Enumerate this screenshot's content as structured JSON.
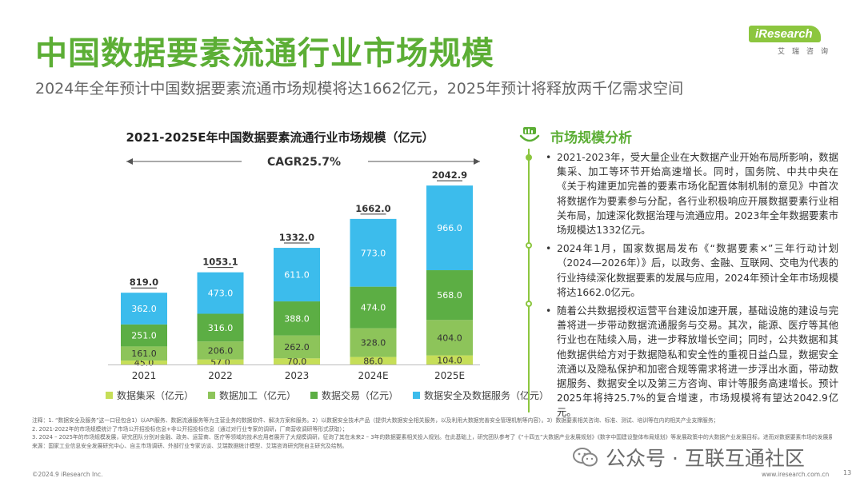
{
  "header": {
    "title": "中国数据要素流通行业市场规模",
    "subtitle": "2024年全年预计中国数据要素流通市场规模将达1662亿元，2025年预计将释放两千亿需求空间"
  },
  "logo": {
    "brand": "iResearch",
    "tagline": "艾瑞咨询",
    "color": "#8cc63f"
  },
  "chart_data": {
    "type": "bar",
    "stacked": true,
    "title": "2021-2025E年中国数据要素流通行业市场规模（亿元）",
    "annotation": "CAGR25.7%",
    "categories": [
      "2021",
      "2022",
      "2023",
      "2024E",
      "2025E"
    ],
    "totals": [
      "819.0",
      "1053.1",
      "1332.0",
      "1662.0",
      "2042.9"
    ],
    "series": [
      {
        "name": "数据集采（亿元）",
        "color": "#c6de58",
        "values": [
          45.0,
          57.0,
          70.0,
          86.0,
          104.0
        ]
      },
      {
        "name": "数据加工（亿元）",
        "color": "#8dc45a",
        "values": [
          161.0,
          206.0,
          262.0,
          328.0,
          404.0
        ]
      },
      {
        "name": "数据交易（亿元）",
        "color": "#5cae44",
        "values": [
          251.0,
          316.0,
          388.0,
          474.0,
          568.0
        ]
      },
      {
        "name": "数据安全及数据服务（亿元）",
        "color": "#3cbcec",
        "values": [
          362.0,
          473.0,
          611.0,
          773.0,
          966.0
        ]
      }
    ],
    "ylim": [
      0,
      2200
    ],
    "legend_position": "bottom"
  },
  "analysis": {
    "heading": "市场规模分析",
    "bullets": [
      "2021-2023年，受大量企业在大数据产业开始布局所影响，数据集采、加工等环节开始高速增长。同时，国务院、中共中央在《关于构建更加完善的要素市场化配置体制机制的意见》中首次将数据作为要素参与分配，各行业积极响应开展数据要素行业相关布局，加速深化数据治理与流通应用。2023年全年数据要素市场规模达1332亿元。",
      "2024年1月，国家数据局发布《“数据要素×”三年行动计划（2024—2026年）》后，以政务、金融、互联网、交电为代表的行业持续深化数据要素的发展与应用，2024年预计全年市场规模将达1662.0亿元。",
      "随着公共数据授权运营平台建设加速开展，基础设施的建设与完善将进一步带动数据流通服务与交易。其次，能源、医疗等其他行业也在陆续入局，进一步释放增长空间；同时，公共数据和其他数据供给方对于数据隐私和安全性的重视日益凸显，数据安全流通以及隐私保护和加密合规等需求将进一步浮出水面，带动数据服务、数据安全以及第三方咨询、审计等服务高速增长。预计2025年将持25.7%的复合增速，市场规模将有望达2042.9亿元。"
    ]
  },
  "notes": [
    "注释：1. “数据安全及服务”这一口径包含1）以API服务、数据流通服务等为主营业务的数据软件、解决方案和服务。2）以数据安全技术产品（提供大数据安全相关服务，以及利用大数据完善安全管理机制等内容）。3）数据要素相关咨询、标准、测试、培训等在内的相关产业支撑服务；",
    "2. 2021-2022年的市场规模统计了市场公开招投标信息+非公开招投标信息（通过对行业专家的调研，厂商营收调研等形式获取）；",
    "3. 2024 – 2025年的市场规模发展，研究团队分别对金融、政务、运营商、医疗等领域的技术应用者展开了大规模调研，征询了其在未来2 – 3年的数据要素相关投入规划。在此基础上，研究团队参考了《“十四五”大数据产业发展规划》《数字中国建设整体布局规划》等发展政策中的大数据产业发展目标，进而对数据要素市场的发展展开了综合预判。",
    "来源：国家工业信息安全发展研究中心、自主市场调研、外部行业专家访谈、艾瑞数据统计模型、艾瑞咨询研究院自主研究及绘制。"
  ],
  "watermark": {
    "text": "公众号 · 互联互通社区"
  },
  "footer": {
    "copyright": "©2024.9 iResearch Inc.",
    "url": "www.iresearch.com.cn",
    "page": "13"
  }
}
